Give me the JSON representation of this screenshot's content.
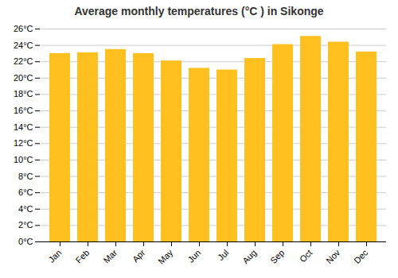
{
  "chart_data": {
    "type": "bar",
    "title": "Average monthly temperatures (°C ) in Sikonge",
    "categories": [
      "Jan",
      "Feb",
      "Mar",
      "Apr",
      "May",
      "Jun",
      "Jul",
      "Aug",
      "Sep",
      "Oct",
      "Nov",
      "Dec"
    ],
    "values": [
      23.0,
      23.1,
      23.5,
      23.0,
      22.1,
      21.2,
      21.0,
      22.4,
      24.1,
      25.1,
      24.4,
      23.2
    ],
    "color": "#FFC020",
    "ylim": [
      0,
      26
    ],
    "yticks": [
      {
        "value": 0,
        "label": "0°C"
      },
      {
        "value": 2,
        "label": "2°C"
      },
      {
        "value": 4,
        "label": "4°C"
      },
      {
        "value": 6,
        "label": "6°C"
      },
      {
        "value": 8,
        "label": "8°C"
      },
      {
        "value": 10,
        "label": "10°C"
      },
      {
        "value": 12,
        "label": "12°C"
      },
      {
        "value": 14,
        "label": "14°C"
      },
      {
        "value": 16,
        "label": "16°C"
      },
      {
        "value": 18,
        "label": "18°C"
      },
      {
        "value": 20,
        "label": "20°C"
      },
      {
        "value": 22,
        "label": "22°C"
      },
      {
        "value": 24,
        "label": "24°C"
      },
      {
        "value": 26,
        "label": "26°C"
      }
    ],
    "grid": true
  }
}
